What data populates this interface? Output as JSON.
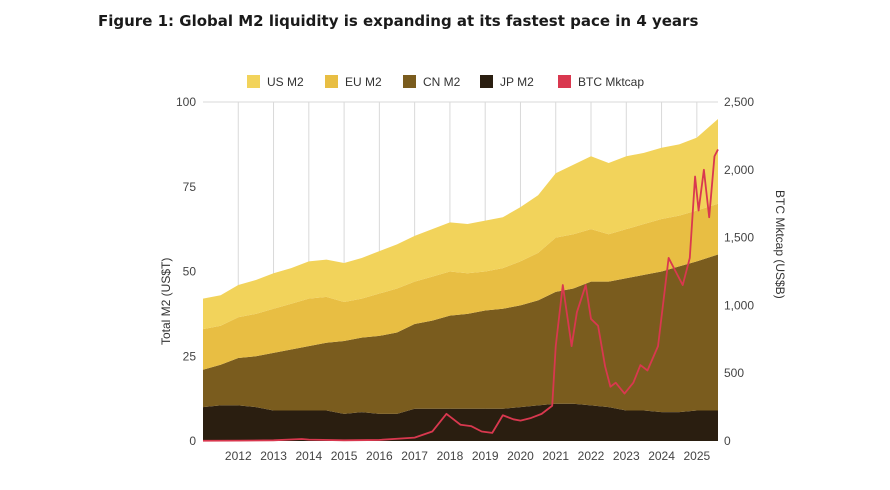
{
  "figure": {
    "title": "Figure 1: Global M2 liquidity is expanding at its fastest pace in 4 years"
  },
  "colors": {
    "us_m2": "#F2D35B",
    "eu_m2": "#E8BE43",
    "cn_m2": "#7A5C1E",
    "jp_m2": "#2A1E10",
    "btc": "#D9384F",
    "grid": "#D9D9D9"
  },
  "chart_data": {
    "type": "area",
    "title": "Figure 1: Global M2 liquidity is expanding at its fastest pace in 4 years",
    "xlabel": "",
    "ylabel": "Total M2 (US$T)",
    "y2label": "BTC Mktcap (US$B)",
    "ylim": [
      0,
      100
    ],
    "y2lim": [
      0,
      2500
    ],
    "yticks": [
      "0",
      "25",
      "50",
      "75",
      "100"
    ],
    "y2ticks": [
      "0",
      "500",
      "1,000",
      "1,500",
      "2,000",
      "2,500"
    ],
    "xticks": [
      "2012",
      "2013",
      "2014",
      "2015",
      "2016",
      "2017",
      "2018",
      "2019",
      "2020",
      "2021",
      "2022",
      "2023",
      "2024",
      "2025"
    ],
    "xlim": [
      2011.0,
      2025.6
    ],
    "grid": "vertical",
    "legend_position": "top",
    "stacking": "stacked",
    "x": [
      2011.0,
      2011.5,
      2012.0,
      2012.5,
      2013.0,
      2013.5,
      2014.0,
      2014.5,
      2015.0,
      2015.5,
      2016.0,
      2016.5,
      2017.0,
      2017.5,
      2018.0,
      2018.5,
      2019.0,
      2019.5,
      2020.0,
      2020.5,
      2021.0,
      2021.5,
      2022.0,
      2022.5,
      2023.0,
      2023.5,
      2024.0,
      2024.5,
      2025.0,
      2025.6
    ],
    "series": [
      {
        "name": "JP M2",
        "values": [
          10,
          10.5,
          10.5,
          10,
          9,
          9,
          9,
          9,
          8,
          8.5,
          8,
          8,
          9.5,
          9.5,
          9.5,
          9.5,
          9.5,
          9.5,
          10,
          10.5,
          11,
          11,
          10.5,
          10,
          9,
          9,
          8.5,
          8.5,
          9,
          9
        ]
      },
      {
        "name": "CN M2",
        "values": [
          11,
          12,
          14,
          15,
          17,
          18,
          19,
          20,
          21.5,
          22,
          23,
          24,
          25,
          26,
          27.5,
          28,
          29,
          29.5,
          30,
          31,
          33,
          34,
          36.5,
          37,
          39,
          40,
          41.5,
          43,
          44,
          46
        ]
      },
      {
        "name": "EU M2",
        "values": [
          12,
          11.5,
          12,
          12.5,
          13,
          13.5,
          14,
          13.5,
          11.5,
          11.5,
          12.5,
          13,
          12.5,
          13,
          13,
          12,
          11.5,
          12,
          13,
          14,
          16,
          16,
          15.5,
          14,
          14.5,
          15,
          15.5,
          15,
          15,
          15
        ]
      },
      {
        "name": "US M2",
        "values": [
          9,
          9,
          9.5,
          10,
          10.5,
          10.5,
          11,
          11,
          11.5,
          12,
          12.5,
          13,
          13.5,
          14,
          14.5,
          14.5,
          15,
          15,
          16,
          17,
          19,
          20.5,
          21.5,
          21,
          21.5,
          21,
          21,
          21,
          21.5,
          25
        ]
      }
    ],
    "btc": {
      "name": "BTC Mktcap",
      "x": [
        2011.0,
        2012.0,
        2013.0,
        2013.8,
        2014.0,
        2015.0,
        2016.0,
        2017.0,
        2017.5,
        2017.9,
        2018.0,
        2018.3,
        2018.6,
        2018.9,
        2019.2,
        2019.5,
        2019.8,
        2020.0,
        2020.3,
        2020.6,
        2020.9,
        2021.0,
        2021.2,
        2021.45,
        2021.6,
        2021.85,
        2022.0,
        2022.2,
        2022.4,
        2022.55,
        2022.7,
        2022.95,
        2023.2,
        2023.4,
        2023.6,
        2023.9,
        2024.2,
        2024.4,
        2024.6,
        2024.8,
        2024.95,
        2025.05,
        2025.2,
        2025.35,
        2025.5,
        2025.6
      ],
      "values": [
        2,
        3,
        5,
        15,
        10,
        5,
        8,
        25,
        70,
        200,
        180,
        120,
        110,
        70,
        60,
        190,
        160,
        150,
        170,
        200,
        260,
        700,
        1150,
        700,
        950,
        1150,
        900,
        850,
        550,
        400,
        430,
        350,
        430,
        560,
        520,
        700,
        1350,
        1250,
        1150,
        1350,
        1950,
        1700,
        2000,
        1650,
        2100,
        2150
      ]
    }
  },
  "legend": [
    {
      "key": "us_m2",
      "label": "US M2"
    },
    {
      "key": "eu_m2",
      "label": "EU M2"
    },
    {
      "key": "cn_m2",
      "label": "CN M2"
    },
    {
      "key": "jp_m2",
      "label": "JP M2"
    },
    {
      "key": "btc",
      "label": "BTC Mktcap"
    }
  ]
}
